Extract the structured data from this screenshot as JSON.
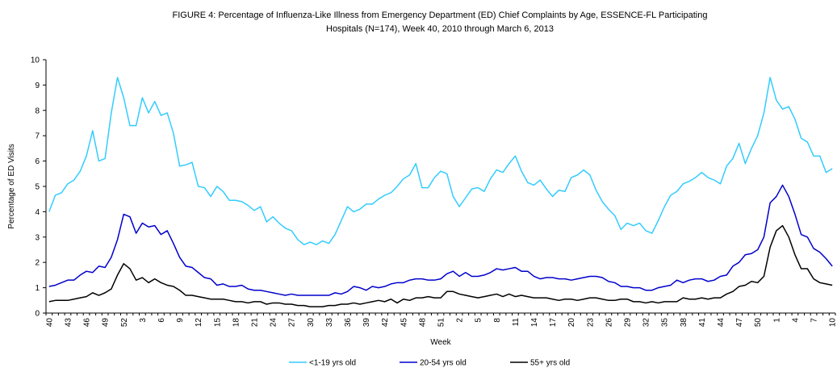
{
  "chart_data": {
    "type": "line",
    "title": [
      "FIGURE 4: Percentage of Influenza-Like Illness from Emergency Department  (ED) Chief Complaints by Age, ESSENCE-FL Participating",
      "Hospitals (N=174), Week  40, 2010 through March 6, 2013"
    ],
    "x_label": "Week",
    "y_label": "Percentage of ED Visits",
    "ylim": [
      0,
      10
    ],
    "yticks": [
      0,
      1,
      2,
      3,
      4,
      5,
      6,
      7,
      8,
      9,
      10
    ],
    "grid": false,
    "legend": "bottom",
    "categories": [
      "40",
      null,
      null,
      "43",
      null,
      null,
      "46",
      null,
      null,
      "49",
      null,
      null,
      "52",
      null,
      null,
      "3",
      null,
      null,
      "6",
      null,
      null,
      "9",
      null,
      null,
      "12",
      null,
      null,
      "15",
      null,
      null,
      "18",
      null,
      null,
      "21",
      null,
      null,
      "24",
      null,
      null,
      "27",
      null,
      null,
      "30",
      null,
      null,
      "33",
      null,
      null,
      "36",
      null,
      null,
      "39",
      null,
      null,
      "42",
      null,
      null,
      "45",
      null,
      null,
      "48",
      null,
      null,
      "51",
      null,
      null,
      "2",
      null,
      null,
      "5",
      null,
      null,
      "8",
      null,
      null,
      "11",
      null,
      null,
      "14",
      null,
      null,
      "17",
      null,
      null,
      "20",
      null,
      null,
      "23",
      null,
      null,
      "26",
      null,
      null,
      "29",
      null,
      null,
      "32",
      null,
      null,
      "35",
      null,
      null,
      "38",
      null,
      null,
      "41",
      null,
      null,
      "44",
      null,
      null,
      "47",
      null,
      null,
      "50",
      null,
      null,
      "1",
      null,
      null,
      "4",
      null,
      null,
      "7",
      null,
      null,
      "10"
    ],
    "series": [
      {
        "name": "<1-19 yrs old",
        "color": "#33ccff",
        "values": [
          4.0,
          4.65,
          4.75,
          5.1,
          5.25,
          5.6,
          6.2,
          7.2,
          6.0,
          6.1,
          7.9,
          9.3,
          8.5,
          7.4,
          7.4,
          8.5,
          7.9,
          8.35,
          7.8,
          7.9,
          7.1,
          5.8,
          5.85,
          5.95,
          5.0,
          4.95,
          4.6,
          5.0,
          4.8,
          4.45,
          4.45,
          4.4,
          4.25,
          4.05,
          4.2,
          3.6,
          3.8,
          3.55,
          3.35,
          3.25,
          2.9,
          2.7,
          2.8,
          2.7,
          2.85,
          2.75,
          3.1,
          3.65,
          4.2,
          4.0,
          4.1,
          4.3,
          4.3,
          4.5,
          4.65,
          4.75,
          5.0,
          5.3,
          5.45,
          5.9,
          4.95,
          4.95,
          5.35,
          5.6,
          5.5,
          4.6,
          4.2,
          4.55,
          4.9,
          4.95,
          4.8,
          5.3,
          5.65,
          5.55,
          5.9,
          6.2,
          5.6,
          5.15,
          5.05,
          5.25,
          4.9,
          4.6,
          4.85,
          4.8,
          5.35,
          5.45,
          5.65,
          5.45,
          4.85,
          4.4,
          4.1,
          3.85,
          3.3,
          3.55,
          3.45,
          3.55,
          3.25,
          3.15,
          3.65,
          4.2,
          4.65,
          4.8,
          5.1,
          5.2,
          5.35,
          5.55,
          5.35,
          5.25,
          5.1,
          5.8,
          6.1,
          6.7,
          5.9,
          6.5,
          7.0,
          7.9,
          9.3,
          8.4,
          8.05,
          8.15,
          7.65,
          6.9,
          6.75,
          6.2,
          6.2,
          5.55,
          5.7
        ]
      },
      {
        "name": "20-54 yrs old",
        "color": "#0000cc",
        "values": [
          1.05,
          1.1,
          1.2,
          1.3,
          1.3,
          1.5,
          1.65,
          1.6,
          1.85,
          1.8,
          2.2,
          2.9,
          3.9,
          3.8,
          3.15,
          3.55,
          3.4,
          3.45,
          3.1,
          3.25,
          2.75,
          2.2,
          1.85,
          1.8,
          1.6,
          1.4,
          1.35,
          1.1,
          1.15,
          1.05,
          1.05,
          1.1,
          0.95,
          0.9,
          0.9,
          0.85,
          0.8,
          0.75,
          0.7,
          0.75,
          0.7,
          0.7,
          0.7,
          0.7,
          0.7,
          0.7,
          0.8,
          0.75,
          0.85,
          1.05,
          1.0,
          0.9,
          1.05,
          1.0,
          1.05,
          1.15,
          1.2,
          1.2,
          1.3,
          1.35,
          1.35,
          1.3,
          1.3,
          1.35,
          1.55,
          1.65,
          1.45,
          1.6,
          1.45,
          1.45,
          1.5,
          1.6,
          1.75,
          1.7,
          1.75,
          1.8,
          1.65,
          1.65,
          1.45,
          1.35,
          1.4,
          1.4,
          1.35,
          1.35,
          1.3,
          1.35,
          1.4,
          1.45,
          1.45,
          1.4,
          1.25,
          1.2,
          1.05,
          1.05,
          1.0,
          1.0,
          0.9,
          0.9,
          1.0,
          1.05,
          1.1,
          1.3,
          1.2,
          1.3,
          1.35,
          1.35,
          1.25,
          1.3,
          1.45,
          1.5,
          1.85,
          2.0,
          2.3,
          2.35,
          2.5,
          3.0,
          4.35,
          4.6,
          5.05,
          4.6,
          3.9,
          3.1,
          3.0,
          2.55,
          2.4,
          2.15,
          1.85
        ]
      },
      {
        "name": "55+ yrs old",
        "color": "#000000",
        "values": [
          0.45,
          0.5,
          0.5,
          0.5,
          0.55,
          0.6,
          0.65,
          0.8,
          0.7,
          0.8,
          0.95,
          1.5,
          1.95,
          1.75,
          1.3,
          1.4,
          1.2,
          1.35,
          1.2,
          1.1,
          1.05,
          0.9,
          0.7,
          0.7,
          0.65,
          0.6,
          0.55,
          0.55,
          0.55,
          0.5,
          0.45,
          0.45,
          0.4,
          0.45,
          0.45,
          0.35,
          0.4,
          0.4,
          0.35,
          0.35,
          0.3,
          0.3,
          0.25,
          0.25,
          0.25,
          0.3,
          0.3,
          0.35,
          0.35,
          0.4,
          0.35,
          0.4,
          0.45,
          0.5,
          0.45,
          0.55,
          0.4,
          0.55,
          0.5,
          0.6,
          0.6,
          0.65,
          0.6,
          0.6,
          0.85,
          0.85,
          0.75,
          0.7,
          0.65,
          0.6,
          0.65,
          0.7,
          0.75,
          0.65,
          0.75,
          0.65,
          0.7,
          0.65,
          0.6,
          0.6,
          0.6,
          0.55,
          0.5,
          0.55,
          0.55,
          0.5,
          0.55,
          0.6,
          0.6,
          0.55,
          0.5,
          0.5,
          0.55,
          0.55,
          0.45,
          0.45,
          0.4,
          0.45,
          0.4,
          0.45,
          0.45,
          0.45,
          0.6,
          0.55,
          0.55,
          0.6,
          0.55,
          0.6,
          0.6,
          0.75,
          0.85,
          1.05,
          1.1,
          1.25,
          1.2,
          1.45,
          2.6,
          3.25,
          3.45,
          3.0,
          2.3,
          1.75,
          1.75,
          1.35,
          1.2,
          1.15,
          1.1
        ]
      }
    ]
  }
}
